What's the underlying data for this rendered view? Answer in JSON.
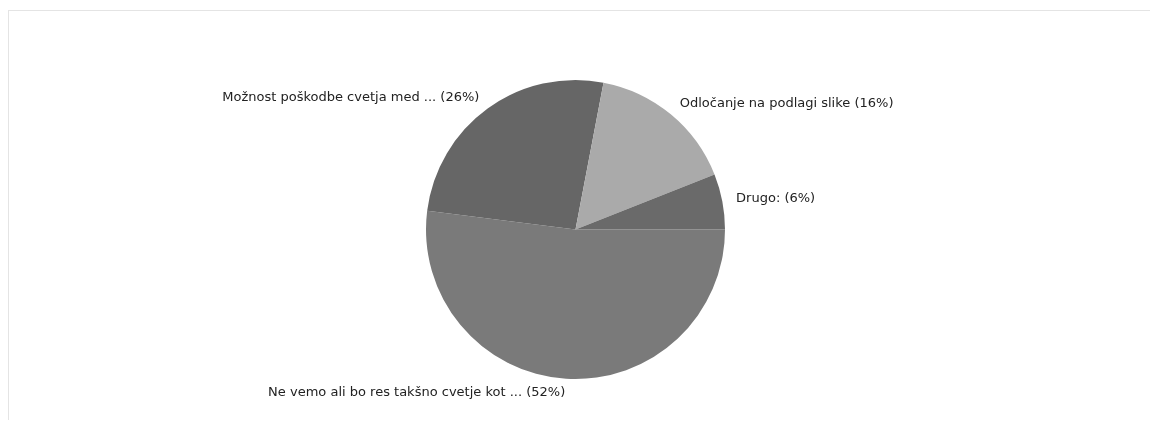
{
  "chart_data": {
    "type": "pie",
    "categories": [
      "Ne vemo ali bo res takšno cvetje kot ... (52%)",
      "Možnost poškodbe cvetja med ... (26%)",
      "Odločanje na podlagi slike (16%)",
      "Drugo: (6%)"
    ],
    "values": [
      52,
      26,
      16,
      6
    ],
    "colors": [
      "#7a7a7a",
      "#666666",
      "#aaaaaa",
      "#6a6a6a"
    ],
    "legend": false
  }
}
